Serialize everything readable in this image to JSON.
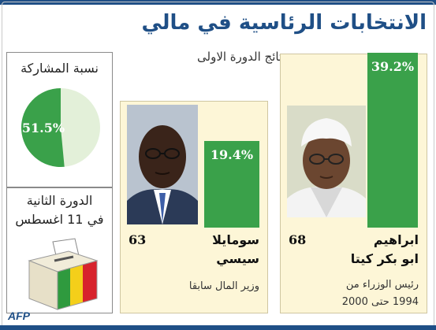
{
  "header": {
    "title": "الانتخابات الرئاسية في مالي",
    "subtitle": "نتائج الدورة الاولى"
  },
  "turnout": {
    "label": "نسبة المشاركة",
    "value_label": "51.5%"
  },
  "second_round": {
    "line1": "الدورة الثانية",
    "line2": "في 11 اغسطس"
  },
  "candidates": [
    {
      "name_line1": "ابراهيم",
      "name_line2": "ابو بكر كيتا",
      "age": "68",
      "role_line1": "رئيس الوزراء من",
      "role_line2": "1994 حتى 2000",
      "value_label": "39.2%"
    },
    {
      "name_line1": "سومايلا",
      "name_line2": "سيسي",
      "age": "63",
      "role_line1": "وزير المال سابقا",
      "value_label": "19.4%"
    }
  ],
  "credit": "AFP",
  "colors": {
    "bar": "#3aa14a",
    "pie_filled": "#3aa14a",
    "pie_empty": "#e3f0d9",
    "title": "#1f4f86",
    "card_bg": "#fdf6d7",
    "frame_bar": "#1f4f86"
  },
  "chart_data": [
    {
      "type": "bar",
      "categories": [
        "ابراهيم ابو بكر كيتا",
        "سومايلا سيسي"
      ],
      "values": [
        39.2,
        19.4
      ],
      "ylim": [
        0,
        39.2
      ]
    },
    {
      "type": "pie",
      "categories": [
        "نسبة المشاركة",
        ""
      ],
      "values": [
        51.5,
        48.5
      ]
    }
  ]
}
